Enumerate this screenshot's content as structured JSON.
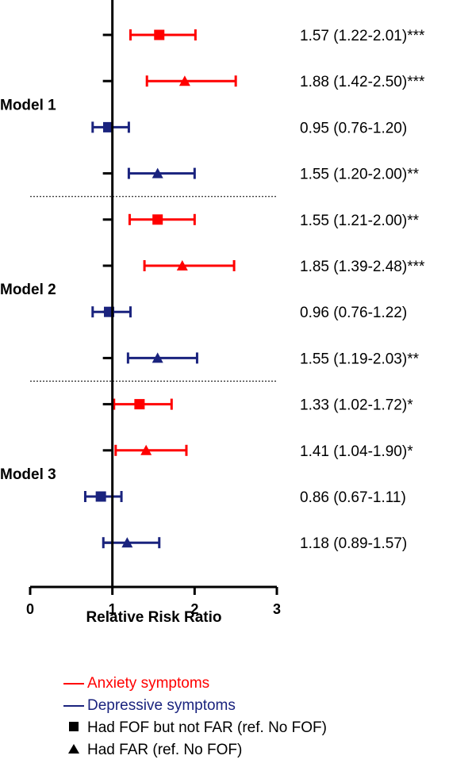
{
  "colors": {
    "anxiety": "#ff0000",
    "depressive": "#1a237e",
    "axis": "#000000"
  },
  "chart_data": {
    "type": "forest",
    "xlabel": "Relative Risk Ratio",
    "xlim": [
      0,
      3
    ],
    "x_ticks": [
      "0",
      "1",
      "2",
      "3"
    ],
    "reference_line": 1,
    "groups": [
      {
        "label": "Model 1",
        "rows": [
          {
            "series": "Anxiety symptoms",
            "marker": "square",
            "estimate": 1.57,
            "lower": 1.22,
            "upper": 2.01,
            "text": "1.57 (1.22-2.01)***"
          },
          {
            "series": "Anxiety symptoms",
            "marker": "triangle",
            "estimate": 1.88,
            "lower": 1.42,
            "upper": 2.5,
            "text": "1.88 (1.42-2.50)***"
          },
          {
            "series": "Depressive symptoms",
            "marker": "square",
            "estimate": 0.95,
            "lower": 0.76,
            "upper": 1.2,
            "text": "0.95 (0.76-1.20)"
          },
          {
            "series": "Depressive symptoms",
            "marker": "triangle",
            "estimate": 1.55,
            "lower": 1.2,
            "upper": 2.0,
            "text": "1.55 (1.20-2.00)**"
          }
        ]
      },
      {
        "label": "Model 2",
        "rows": [
          {
            "series": "Anxiety symptoms",
            "marker": "square",
            "estimate": 1.55,
            "lower": 1.21,
            "upper": 2.0,
            "text": "1.55 (1.21-2.00)**"
          },
          {
            "series": "Anxiety symptoms",
            "marker": "triangle",
            "estimate": 1.85,
            "lower": 1.39,
            "upper": 2.48,
            "text": "1.85 (1.39-2.48)***"
          },
          {
            "series": "Depressive symptoms",
            "marker": "square",
            "estimate": 0.96,
            "lower": 0.76,
            "upper": 1.22,
            "text": "0.96 (0.76-1.22)"
          },
          {
            "series": "Depressive symptoms",
            "marker": "triangle",
            "estimate": 1.55,
            "lower": 1.19,
            "upper": 2.03,
            "text": "1.55 (1.19-2.03)**"
          }
        ]
      },
      {
        "label": "Model 3",
        "rows": [
          {
            "series": "Anxiety symptoms",
            "marker": "square",
            "estimate": 1.33,
            "lower": 1.02,
            "upper": 1.72,
            "text": "1.33 (1.02-1.72)*"
          },
          {
            "series": "Anxiety symptoms",
            "marker": "triangle",
            "estimate": 1.41,
            "lower": 1.04,
            "upper": 1.9,
            "text": "1.41 (1.04-1.90)*"
          },
          {
            "series": "Depressive symptoms",
            "marker": "square",
            "estimate": 0.86,
            "lower": 0.67,
            "upper": 1.11,
            "text": "0.86 (0.67-1.11)"
          },
          {
            "series": "Depressive symptoms",
            "marker": "triangle",
            "estimate": 1.18,
            "lower": 0.89,
            "upper": 1.57,
            "text": "1.18 (0.89-1.57)"
          }
        ]
      }
    ],
    "legend": {
      "series": [
        {
          "name": "Anxiety symptoms",
          "color": "#ff0000"
        },
        {
          "name": "Depressive symptoms",
          "color": "#1a237e"
        }
      ],
      "markers": [
        {
          "shape": "square",
          "label": "Had FOF but not FAR (ref. No FOF)"
        },
        {
          "shape": "triangle",
          "label": "Had FAR (ref. No FOF)"
        }
      ]
    }
  }
}
